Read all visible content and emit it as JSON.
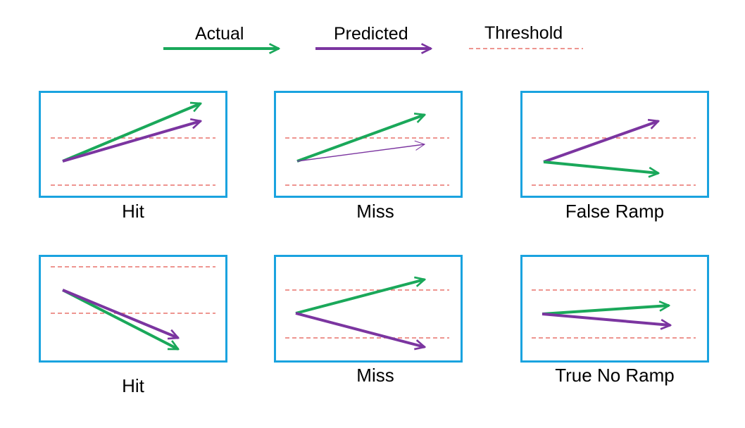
{
  "colors": {
    "actual": "#1aa85a",
    "predicted": "#7b35a0",
    "threshold": "#e8726c",
    "panel_border": "#1aa3df"
  },
  "legend": {
    "actual": "Actual",
    "predicted": "Predicted",
    "threshold": "Threshold"
  },
  "panels": [
    {
      "caption": "Hit"
    },
    {
      "caption": "Miss"
    },
    {
      "caption": "False Ramp"
    },
    {
      "caption": "Hit"
    },
    {
      "caption": "Miss"
    },
    {
      "caption": "True No Ramp"
    }
  ]
}
